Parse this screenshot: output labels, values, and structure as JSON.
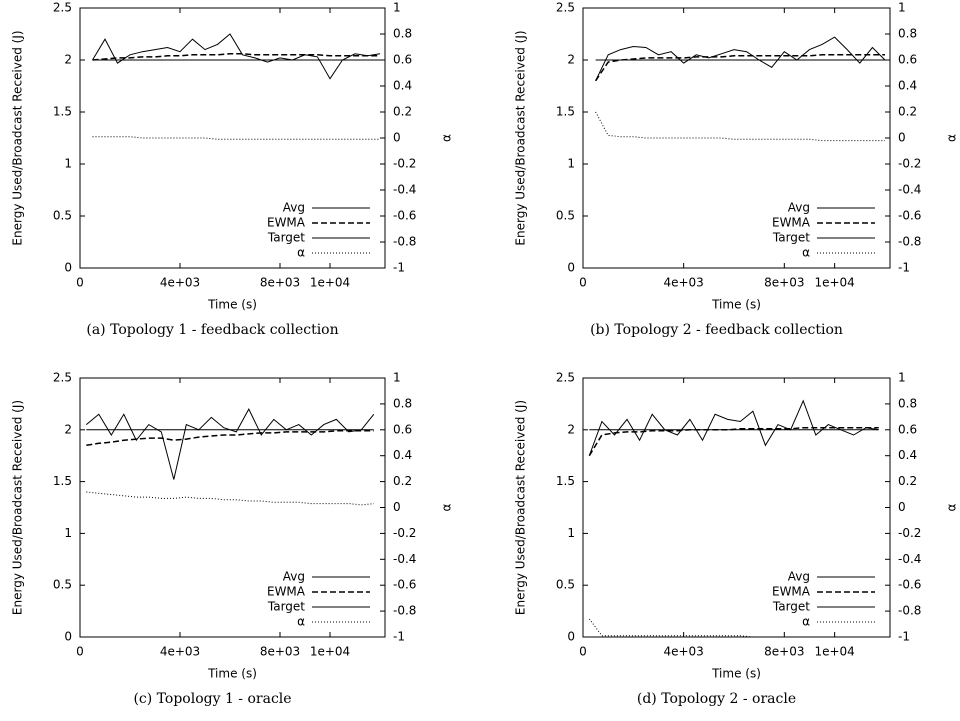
{
  "chart_data": [
    {
      "type": "line",
      "caption": "(a) Topology 1 - feedback collection",
      "xlabel": "Time (s)",
      "ylabel": "Energy Used/Broadcast Received (J)",
      "y2label": "α",
      "xlim": [
        0,
        12200
      ],
      "ylim": [
        0,
        2.5
      ],
      "y2lim": [
        -1,
        1
      ],
      "xticks": [
        0,
        {
          "value": 4000,
          "label": "4e+03"
        },
        {
          "value": 8000,
          "label": "8e+03"
        },
        {
          "value": 10000,
          "label": "1e+04"
        }
      ],
      "yticks": [
        0,
        0.5,
        1,
        1.5,
        2,
        2.5
      ],
      "y2ticks": [
        -1,
        -0.8,
        -0.6,
        -0.4,
        -0.2,
        0,
        0.2,
        0.4,
        0.6,
        0.8,
        1
      ],
      "x": [
        500,
        1000,
        1500,
        2000,
        2500,
        3000,
        3500,
        4000,
        4500,
        5000,
        5500,
        6000,
        6500,
        7000,
        7500,
        8000,
        8500,
        9000,
        9500,
        10000,
        10500,
        11000,
        11500,
        12000
      ],
      "series": [
        {
          "name": "Avg",
          "color": "#000000",
          "style": "solid",
          "values": [
            2.0,
            2.2,
            1.97,
            2.05,
            2.08,
            2.1,
            2.12,
            2.08,
            2.2,
            2.1,
            2.15,
            2.25,
            2.05,
            2.02,
            1.98,
            2.02,
            2.0,
            2.05,
            2.03,
            1.82,
            2.0,
            2.06,
            2.04,
            2.06
          ]
        },
        {
          "name": "EWMA",
          "color": "#000000",
          "style": "dashed",
          "values": [
            2.0,
            2.01,
            2.02,
            2.02,
            2.03,
            2.03,
            2.04,
            2.04,
            2.05,
            2.05,
            2.05,
            2.06,
            2.06,
            2.05,
            2.05,
            2.05,
            2.05,
            2.05,
            2.05,
            2.04,
            2.04,
            2.04,
            2.04,
            2.04
          ]
        },
        {
          "name": "Target",
          "color": "#000000",
          "style": "solid",
          "values": [
            2,
            2,
            2,
            2,
            2,
            2,
            2,
            2,
            2,
            2,
            2,
            2,
            2,
            2,
            2,
            2,
            2,
            2,
            2,
            2,
            2,
            2,
            2,
            2
          ]
        },
        {
          "name": "α",
          "color": "#000000",
          "style": "dotted",
          "axis": "y2",
          "values": [
            0.01,
            0.01,
            0.01,
            0.01,
            0.0,
            0.0,
            0.0,
            0.0,
            0.0,
            0.0,
            -0.01,
            -0.01,
            -0.01,
            -0.01,
            -0.01,
            -0.01,
            -0.01,
            -0.01,
            -0.01,
            -0.01,
            -0.01,
            -0.01,
            -0.01,
            -0.01
          ]
        }
      ]
    },
    {
      "type": "line",
      "caption": "(b) Topology 2 - feedback collection",
      "xlabel": "Time (s)",
      "ylabel": "Energy Used/Broadcast Received (J)",
      "y2label": "α",
      "xlim": [
        0,
        12200
      ],
      "ylim": [
        0,
        2.5
      ],
      "y2lim": [
        -1,
        1
      ],
      "xticks": [
        0,
        {
          "value": 4000,
          "label": "4e+03"
        },
        {
          "value": 8000,
          "label": "8e+03"
        },
        {
          "value": 10000,
          "label": "1e+04"
        }
      ],
      "yticks": [
        0,
        0.5,
        1,
        1.5,
        2,
        2.5
      ],
      "y2ticks": [
        -1,
        -0.8,
        -0.6,
        -0.4,
        -0.2,
        0,
        0.2,
        0.4,
        0.6,
        0.8,
        1
      ],
      "x": [
        500,
        1000,
        1500,
        2000,
        2500,
        3000,
        3500,
        4000,
        4500,
        5000,
        5500,
        6000,
        6500,
        7000,
        7500,
        8000,
        8500,
        9000,
        9500,
        10000,
        10500,
        11000,
        11500,
        12000
      ],
      "series": [
        {
          "name": "Avg",
          "color": "#000000",
          "style": "solid",
          "values": [
            1.8,
            2.05,
            2.1,
            2.13,
            2.12,
            2.05,
            2.08,
            1.97,
            2.05,
            2.02,
            2.06,
            2.1,
            2.08,
            2.0,
            1.93,
            2.08,
            2.0,
            2.1,
            2.15,
            2.22,
            2.1,
            1.97,
            2.12,
            2.0
          ]
        },
        {
          "name": "EWMA",
          "color": "#000000",
          "style": "dashed",
          "values": [
            1.8,
            1.98,
            2.0,
            2.01,
            2.02,
            2.02,
            2.02,
            2.02,
            2.03,
            2.03,
            2.03,
            2.04,
            2.04,
            2.04,
            2.04,
            2.04,
            2.04,
            2.04,
            2.05,
            2.05,
            2.05,
            2.05,
            2.05,
            2.05
          ]
        },
        {
          "name": "Target",
          "color": "#000000",
          "style": "solid",
          "values": [
            2,
            2,
            2,
            2,
            2,
            2,
            2,
            2,
            2,
            2,
            2,
            2,
            2,
            2,
            2,
            2,
            2,
            2,
            2,
            2,
            2,
            2,
            2,
            2
          ]
        },
        {
          "name": "α",
          "color": "#000000",
          "style": "dotted",
          "axis": "y2",
          "values": [
            0.2,
            0.02,
            0.01,
            0.01,
            0.0,
            0.0,
            0.0,
            0.0,
            0.0,
            0.0,
            0.0,
            -0.01,
            -0.01,
            -0.01,
            -0.01,
            -0.01,
            -0.01,
            -0.01,
            -0.02,
            -0.02,
            -0.02,
            -0.02,
            -0.02,
            -0.02
          ]
        }
      ]
    },
    {
      "type": "line",
      "caption": "(c) Topology 1 - oracle",
      "xlabel": "Time (s)",
      "ylabel": "Energy Used/Broadcast Received (J)",
      "y2label": "α",
      "xlim": [
        0,
        12200
      ],
      "ylim": [
        0,
        2.5
      ],
      "y2lim": [
        -1,
        1
      ],
      "xticks": [
        0,
        {
          "value": 4000,
          "label": "4e+03"
        },
        {
          "value": 8000,
          "label": "8e+03"
        },
        {
          "value": 10000,
          "label": "1e+04"
        }
      ],
      "yticks": [
        0,
        0.5,
        1,
        1.5,
        2,
        2.5
      ],
      "y2ticks": [
        -1,
        -0.8,
        -0.6,
        -0.4,
        -0.2,
        0,
        0.2,
        0.4,
        0.6,
        0.8,
        1
      ],
      "x": [
        250,
        750,
        1250,
        1750,
        2250,
        2750,
        3250,
        3750,
        4250,
        4750,
        5250,
        5750,
        6250,
        6750,
        7250,
        7750,
        8250,
        8750,
        9250,
        9750,
        10250,
        10750,
        11250,
        11750
      ],
      "series": [
        {
          "name": "Avg",
          "color": "#000000",
          "style": "solid",
          "values": [
            2.05,
            2.15,
            1.95,
            2.15,
            1.9,
            2.05,
            1.98,
            1.52,
            2.05,
            2.0,
            2.12,
            2.02,
            1.98,
            2.2,
            1.95,
            2.1,
            2.0,
            2.05,
            1.95,
            2.05,
            2.1,
            1.98,
            2.0,
            2.15
          ]
        },
        {
          "name": "EWMA",
          "color": "#000000",
          "style": "dashed",
          "values": [
            1.85,
            1.87,
            1.88,
            1.9,
            1.91,
            1.92,
            1.92,
            1.9,
            1.91,
            1.93,
            1.94,
            1.95,
            1.95,
            1.96,
            1.97,
            1.97,
            1.98,
            1.98,
            1.98,
            1.98,
            1.99,
            1.99,
            1.99,
            1.99
          ]
        },
        {
          "name": "Target",
          "color": "#000000",
          "style": "solid",
          "values": [
            2,
            2,
            2,
            2,
            2,
            2,
            2,
            2,
            2,
            2,
            2,
            2,
            2,
            2,
            2,
            2,
            2,
            2,
            2,
            2,
            2,
            2,
            2,
            2
          ]
        },
        {
          "name": "α",
          "color": "#000000",
          "style": "dotted",
          "axis": "y2",
          "values": [
            0.12,
            0.11,
            0.1,
            0.09,
            0.08,
            0.08,
            0.07,
            0.07,
            0.08,
            0.07,
            0.07,
            0.06,
            0.06,
            0.05,
            0.05,
            0.04,
            0.04,
            0.04,
            0.03,
            0.03,
            0.03,
            0.03,
            0.02,
            0.03
          ]
        }
      ]
    },
    {
      "type": "line",
      "caption": "(d) Topology 2 - oracle",
      "xlabel": "Time (s)",
      "ylabel": "Energy Used/Broadcast Received (J)",
      "y2label": "α",
      "xlim": [
        0,
        12200
      ],
      "ylim": [
        0,
        2.5
      ],
      "y2lim": [
        -1,
        1
      ],
      "xticks": [
        0,
        {
          "value": 4000,
          "label": "4e+03"
        },
        {
          "value": 8000,
          "label": "8e+03"
        },
        {
          "value": 10000,
          "label": "1e+04"
        }
      ],
      "yticks": [
        0,
        0.5,
        1,
        1.5,
        2,
        2.5
      ],
      "y2ticks": [
        -1,
        -0.8,
        -0.6,
        -0.4,
        -0.2,
        0,
        0.2,
        0.4,
        0.6,
        0.8,
        1
      ],
      "x": [
        250,
        750,
        1250,
        1750,
        2250,
        2750,
        3250,
        3750,
        4250,
        4750,
        5250,
        5750,
        6250,
        6750,
        7250,
        7750,
        8250,
        8750,
        9250,
        9750,
        10250,
        10750,
        11250,
        11750
      ],
      "series": [
        {
          "name": "Avg",
          "color": "#000000",
          "style": "solid",
          "values": [
            1.75,
            2.08,
            1.95,
            2.1,
            1.9,
            2.15,
            2.0,
            1.95,
            2.1,
            1.9,
            2.15,
            2.1,
            2.08,
            2.18,
            1.85,
            2.05,
            2.0,
            2.28,
            1.95,
            2.05,
            2.0,
            1.95,
            2.02,
            2.0
          ]
        },
        {
          "name": "EWMA",
          "color": "#000000",
          "style": "dashed",
          "values": [
            1.75,
            1.95,
            1.97,
            1.98,
            1.98,
            1.99,
            1.99,
            1.99,
            2.0,
            2.0,
            2.0,
            2.0,
            2.01,
            2.01,
            2.01,
            2.01,
            2.01,
            2.02,
            2.02,
            2.02,
            2.02,
            2.02,
            2.02,
            2.02
          ]
        },
        {
          "name": "Target",
          "color": "#000000",
          "style": "solid",
          "values": [
            2,
            2,
            2,
            2,
            2,
            2,
            2,
            2,
            2,
            2,
            2,
            2,
            2,
            2,
            2,
            2,
            2,
            2,
            2,
            2,
            2,
            2,
            2,
            2
          ]
        },
        {
          "name": "α",
          "color": "#000000",
          "style": "dotted",
          "axis": "y2",
          "values": [
            -0.86,
            -0.99,
            -0.99,
            -0.99,
            -0.99,
            -0.99,
            -0.99,
            -0.99,
            -0.99,
            -0.99,
            -0.99,
            -0.99,
            -0.99,
            -1,
            -1,
            -1,
            -1,
            -1,
            -1,
            -1,
            -1,
            -1,
            -1,
            -1
          ]
        }
      ]
    }
  ]
}
